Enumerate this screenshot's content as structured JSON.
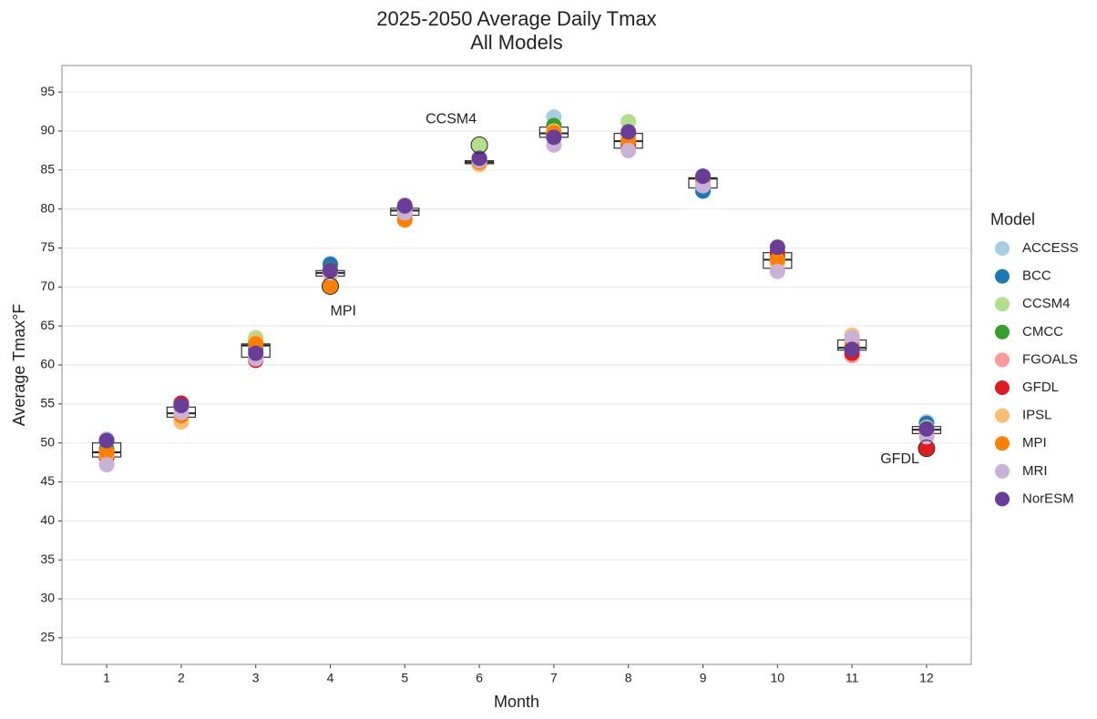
{
  "chart_data": {
    "type": "box-scatter",
    "title": "2025-2050 Average Daily Tmax",
    "subtitle": "All Models",
    "x_label": "Month",
    "y_label": "Average Tmax°F",
    "legend_title": "Model",
    "x": [
      1,
      2,
      3,
      4,
      5,
      6,
      7,
      8,
      9,
      10,
      11,
      12
    ],
    "xlim": [
      0.4,
      12.6
    ],
    "xticks": [
      1,
      2,
      3,
      4,
      5,
      6,
      7,
      8,
      9,
      10,
      11,
      12
    ],
    "ylim": [
      21.6,
      98.4
    ],
    "yticks": [
      25,
      30,
      35,
      40,
      45,
      50,
      55,
      60,
      65,
      70,
      75,
      80,
      85,
      90,
      95
    ],
    "grid": true,
    "boxes": {
      "q1": [
        48.2,
        53.3,
        61.0,
        71.4,
        79.2,
        85.8,
        89.2,
        87.8,
        82.7,
        72.4,
        61.9,
        51.2
      ],
      "median": [
        48.8,
        53.8,
        62.5,
        71.8,
        79.8,
        86.0,
        89.7,
        88.7,
        83.9,
        73.5,
        62.2,
        51.7
      ],
      "q3": [
        50.0,
        54.6,
        62.7,
        72.1,
        80.1,
        86.2,
        90.5,
        89.7,
        84.0,
        74.4,
        63.2,
        52.1
      ]
    },
    "series": [
      {
        "name": "ACCESS",
        "color": "#a6cee3",
        "values": [
          50.5,
          54.5,
          63.0,
          73.0,
          80.0,
          86.0,
          91.8,
          89.0,
          82.5,
          73.5,
          62.5,
          52.7
        ]
      },
      {
        "name": "BCC",
        "color": "#1f78b4",
        "values": [
          50.3,
          54.8,
          62.0,
          72.9,
          80.2,
          86.2,
          89.5,
          88.5,
          82.3,
          73.8,
          62.0,
          52.5
        ]
      },
      {
        "name": "CCSM4",
        "color": "#b2df8a",
        "values": [
          49.0,
          54.0,
          63.5,
          72.0,
          79.5,
          88.2,
          90.2,
          91.2,
          83.5,
          73.0,
          62.8,
          52.0
        ]
      },
      {
        "name": "CMCC",
        "color": "#33a02c",
        "values": [
          49.2,
          53.8,
          63.0,
          72.2,
          80.0,
          86.5,
          90.7,
          89.5,
          84.0,
          74.0,
          62.2,
          51.8
        ]
      },
      {
        "name": "FGOALS",
        "color": "#fb9a99",
        "values": [
          48.0,
          55.0,
          61.0,
          71.5,
          80.5,
          85.9,
          89.3,
          88.8,
          84.2,
          73.2,
          61.2,
          51.5
        ]
      },
      {
        "name": "GFDL",
        "color": "#e31a1c",
        "values": [
          48.2,
          55.1,
          60.6,
          71.8,
          80.3,
          86.0,
          89.5,
          88.2,
          84.0,
          74.5,
          61.5,
          49.3
        ]
      },
      {
        "name": "IPSL",
        "color": "#fdbf6f",
        "values": [
          48.5,
          52.7,
          63.0,
          71.5,
          79.0,
          85.7,
          90.0,
          89.0,
          83.0,
          73.0,
          63.8,
          51.5
        ]
      },
      {
        "name": "MPI",
        "color": "#ff7f00",
        "values": [
          48.8,
          53.5,
          62.7,
          70.1,
          78.6,
          86.0,
          89.8,
          88.7,
          83.8,
          73.5,
          62.5,
          51.6
        ]
      },
      {
        "name": "MRI",
        "color": "#cab2d6",
        "values": [
          47.2,
          53.9,
          60.8,
          71.8,
          79.5,
          86.2,
          88.2,
          87.5,
          83.0,
          72.0,
          63.5,
          50.8
        ]
      },
      {
        "name": "NorESM",
        "color": "#6a3d9a",
        "values": [
          50.3,
          54.8,
          61.5,
          72.1,
          80.4,
          86.5,
          89.2,
          89.9,
          84.2,
          75.1,
          62.0,
          51.8
        ]
      }
    ],
    "annotations": [
      "CCSM4",
      "MPI",
      "GFDL"
    ]
  }
}
